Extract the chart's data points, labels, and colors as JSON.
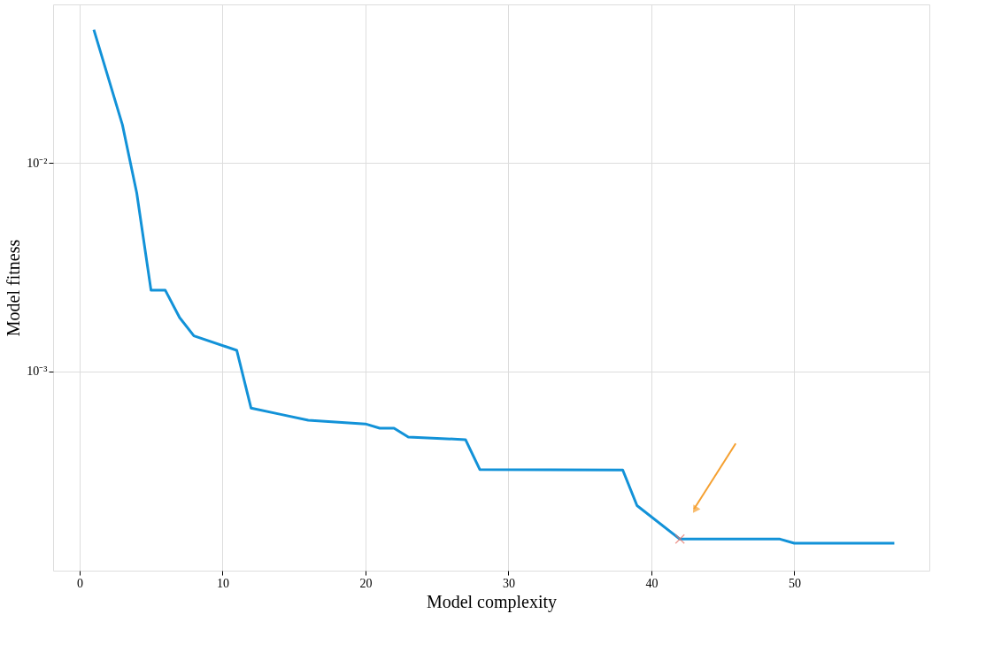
{
  "chart_data": {
    "type": "line",
    "xlabel": "Model complexity",
    "ylabel": "Model fitness",
    "log": "y",
    "grid": true,
    "xlim": [
      -1.85,
      59.45
    ],
    "xticks": [
      0,
      10,
      20,
      30,
      40,
      50
    ],
    "ylim": [
      0.00011,
      0.058
    ],
    "yticks": [
      {
        "value": 0.01,
        "label": "10⁻²"
      },
      {
        "value": 0.001,
        "label": "10⁻³"
      }
    ],
    "series": [
      {
        "color": "#1292d8",
        "marker": "none",
        "line_style": "solid",
        "x": [
          1,
          3,
          4,
          5,
          6,
          7,
          8,
          11,
          12,
          14,
          16,
          20,
          21,
          22,
          23,
          27,
          28,
          38,
          39,
          42,
          49,
          50,
          57
        ],
        "values": [
          0.0438,
          0.0153,
          0.0072,
          0.00245,
          0.00245,
          0.00181,
          0.00148,
          0.00126,
          0.000665,
          0.000622,
          0.000581,
          0.000558,
          0.000532,
          0.000532,
          0.000483,
          0.000469,
          0.000337,
          0.000335,
          0.000226,
          0.000156,
          0.000156,
          0.000149,
          0.000149
        ]
      },
      {
        "type": "scatter",
        "color": "#e8776b",
        "marker": "cross",
        "x": [
          42
        ],
        "values": [
          0.000156
        ]
      }
    ]
  }
}
